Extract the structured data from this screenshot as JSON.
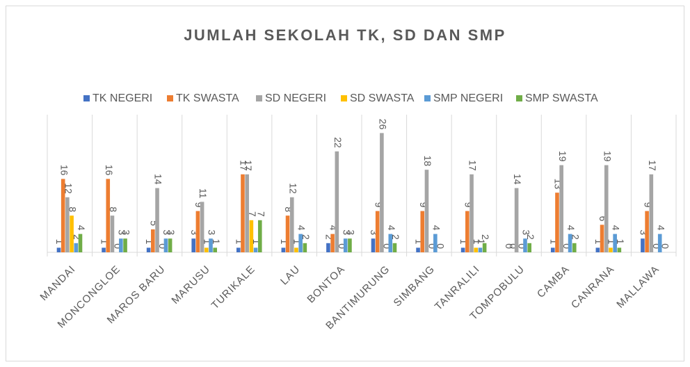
{
  "chart_data": {
    "type": "bar",
    "title": "JUMLAH SEKOLAH TK, SD DAN SMP",
    "categories": [
      "MANDAI",
      "MONCONGLOE",
      "MAROS BARU",
      "MARUSU",
      "TURIKALE",
      "LAU",
      "BONTOA",
      "BANTIMURUNG",
      "SIMBANG",
      "TANRALILI",
      "TOMPOBULU",
      "CAMBA",
      "CANRANA",
      "MALLAWA"
    ],
    "series": [
      {
        "name": "TK NEGERI",
        "color": "#4472c4",
        "values": [
          1,
          1,
          1,
          3,
          1,
          1,
          2,
          3,
          1,
          1,
          0,
          1,
          1,
          3
        ]
      },
      {
        "name": "TK SWASTA",
        "color": "#ed7d31",
        "values": [
          16,
          16,
          5,
          9,
          17,
          8,
          4,
          9,
          9,
          9,
          0,
          13,
          6,
          9
        ]
      },
      {
        "name": "SD NEGERI",
        "color": "#a5a5a5",
        "values": [
          12,
          8,
          14,
          11,
          17,
          12,
          22,
          26,
          18,
          17,
          14,
          19,
          19,
          17
        ]
      },
      {
        "name": "SD SWASTA",
        "color": "#ffc000",
        "values": [
          8,
          0,
          0,
          1,
          7,
          1,
          0,
          0,
          0,
          1,
          0,
          0,
          1,
          0
        ]
      },
      {
        "name": "SMP NEGERI",
        "color": "#5b9bd5",
        "values": [
          2,
          3,
          3,
          3,
          1,
          4,
          3,
          4,
          4,
          1,
          3,
          4,
          4,
          4
        ]
      },
      {
        "name": "SMP SWASTA",
        "color": "#70ad47",
        "values": [
          4,
          3,
          3,
          1,
          7,
          2,
          3,
          2,
          0,
          2,
          2,
          2,
          1,
          0
        ]
      }
    ],
    "ylim": [
      0,
      30
    ],
    "legend": "top"
  }
}
